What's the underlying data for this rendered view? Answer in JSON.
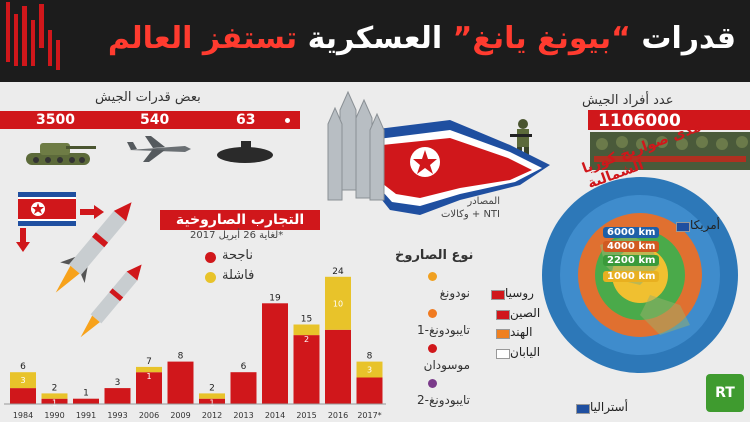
{
  "header": {
    "title_part1": "قدرات ",
    "title_accent": "“بيونغ يانغ” ",
    "title_part2": "العسكرية ",
    "title_part3": "تستفز العالم"
  },
  "army": {
    "title": "بعض قدرات الجيش",
    "values": [
      "3500",
      "540",
      "63"
    ]
  },
  "personnel": {
    "title": "عدد أفراد الجيش",
    "value": "1106000"
  },
  "source": "المصادر\nNTI + وكالات",
  "tests": {
    "title": "التجارب الصاروخية",
    "date_note": "*لغاية 26 أبريل 2017",
    "legend_success": "ناجحة",
    "legend_fail": "فاشلة"
  },
  "colors": {
    "red": "#d0171b",
    "yellow": "#e8c32a",
    "header": "#1c1c1c"
  },
  "chart_data": {
    "type": "bar",
    "stacked": true,
    "categories": [
      "1984",
      "1990",
      "1991",
      "1993",
      "2006",
      "2009",
      "2012",
      "2013",
      "2014",
      "2015",
      "2016",
      "2017*"
    ],
    "totals": [
      6,
      2,
      1,
      3,
      7,
      8,
      2,
      6,
      19,
      15,
      24,
      8
    ],
    "failed_labels": [
      3,
      1,
      null,
      null,
      1,
      null,
      1,
      null,
      null,
      2,
      10,
      3
    ],
    "series": [
      {
        "name": "ناجحة",
        "values": [
          3,
          1,
          1,
          3,
          6,
          8,
          1,
          6,
          19,
          13,
          14,
          5
        ]
      },
      {
        "name": "فاشلة",
        "values": [
          3,
          1,
          0,
          0,
          1,
          0,
          1,
          0,
          0,
          2,
          10,
          3
        ]
      }
    ]
  },
  "missile_types": {
    "title": "نوع الصاروخ",
    "items": [
      "نودونغ",
      "تايبودونغ-1",
      "موسودان",
      "تايبودونغ-2"
    ],
    "colors": [
      "#f0a020",
      "#f07a20",
      "#d0171b",
      "#7a3a8a"
    ]
  },
  "range": {
    "title": "مدى صواريخ كوريا الشمالية",
    "rings": [
      "6000",
      "4000",
      "2200",
      "1000"
    ],
    "unit": "km",
    "ring_colors": [
      "#1e5fa8",
      "#d05a20",
      "#3a9a3a",
      "#e8b020"
    ],
    "countries": [
      "أمريكا",
      "روسيا",
      "الصين",
      "الهند",
      "اليابان",
      "أستراليا"
    ]
  },
  "logo": "RT"
}
